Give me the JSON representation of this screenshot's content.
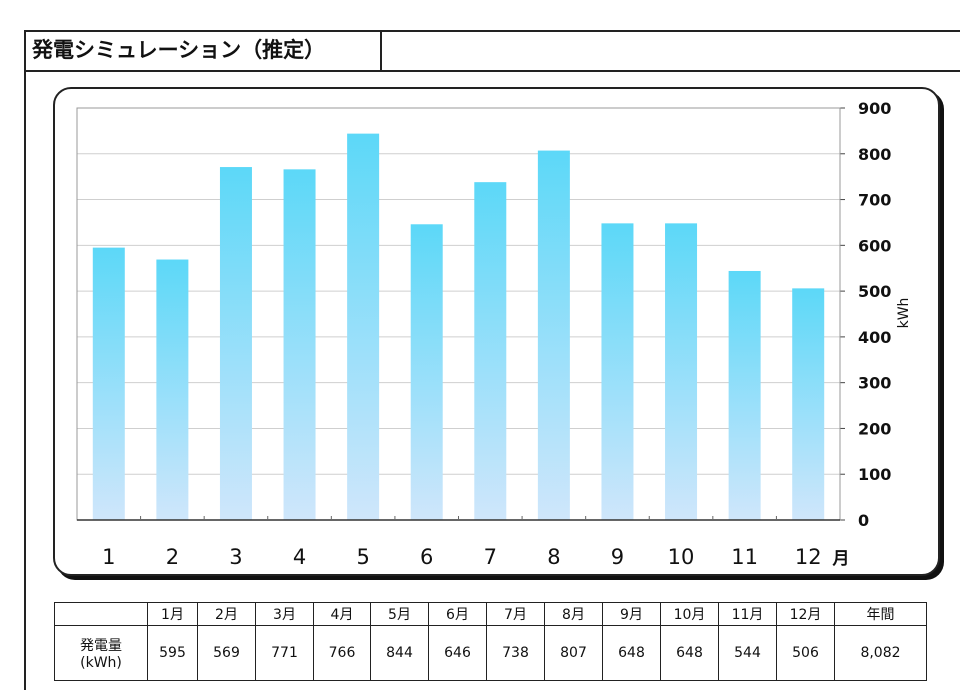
{
  "header": {
    "title": "発電シミュレーション（推定）"
  },
  "chart_data": {
    "type": "bar",
    "title": "発電シミュレーション（推定）",
    "categories": [
      "1",
      "2",
      "3",
      "4",
      "5",
      "6",
      "7",
      "8",
      "9",
      "10",
      "11",
      "12"
    ],
    "values": [
      595,
      569,
      771,
      766,
      844,
      646,
      738,
      807,
      648,
      648,
      544,
      506
    ],
    "xlabel": "月",
    "ylabel": "kWh",
    "ylim": [
      0,
      900
    ],
    "yticks": [
      "0",
      "100",
      "200",
      "300",
      "400",
      "500",
      "600",
      "700",
      "800",
      "900"
    ],
    "y_axis_side": "right",
    "grid": true,
    "colors": {
      "bar_top": "#5cd8f8",
      "bar_bottom": "#cfe6fb",
      "grid": "#cfcfcf"
    }
  },
  "table": {
    "headers": [
      "",
      "1月",
      "2月",
      "3月",
      "4月",
      "5月",
      "6月",
      "7月",
      "8月",
      "9月",
      "10月",
      "11月",
      "12月",
      "年間"
    ],
    "row_label_line1": "発電量",
    "row_label_line2": "(kWh)",
    "values": [
      "595",
      "569",
      "771",
      "766",
      "844",
      "646",
      "738",
      "807",
      "648",
      "648",
      "544",
      "506",
      "8,082"
    ]
  }
}
